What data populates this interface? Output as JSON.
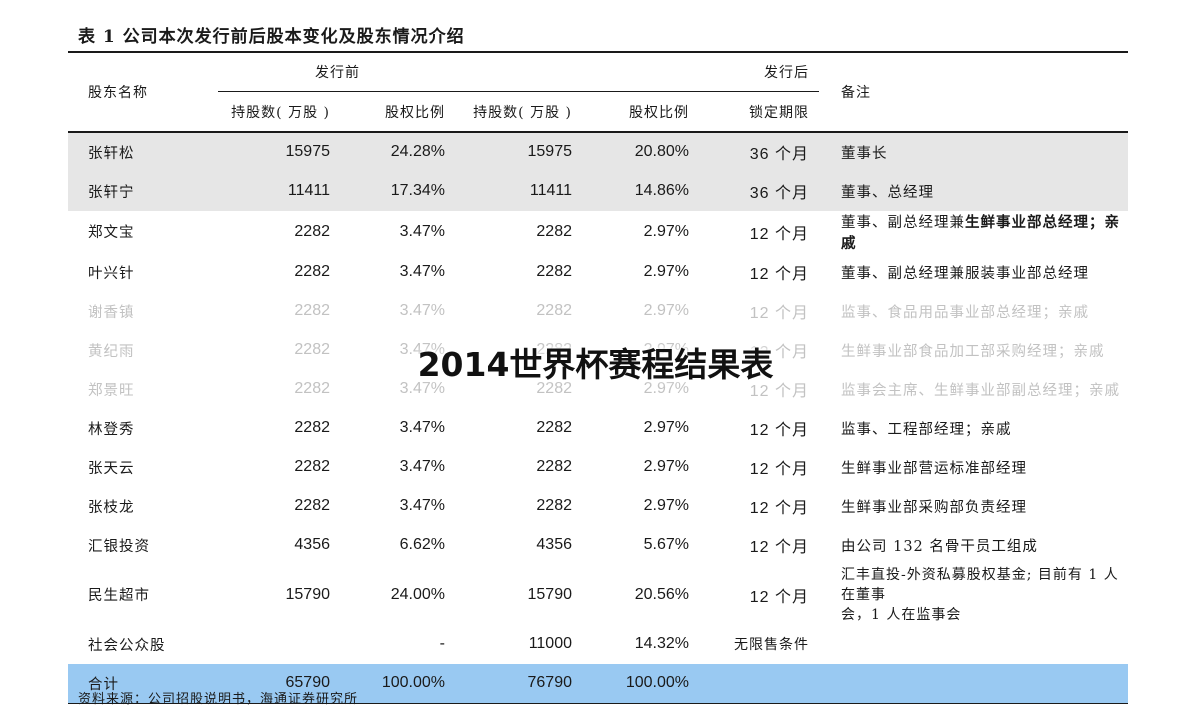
{
  "title": "表 1 公司本次发行前后股本变化及股东情况介绍",
  "overlay_title": "2014世界杯赛程结果表",
  "source": "资料来源：公司招股说明书，海通证券研究所",
  "headers": {
    "shareholder": "股东名称",
    "before": "发行前",
    "after": "发行后",
    "note": "备注",
    "shares_before": "持股数( 万股 )",
    "ratio_before": "股权比例",
    "shares_after": "持股数( 万股 )",
    "ratio_after": "股权比例",
    "lock": "锁定期限"
  },
  "rows": [
    {
      "name": "张轩松",
      "shares_before": "15975",
      "ratio_before": "24.28%",
      "shares_after": "15975",
      "ratio_after": "20.80%",
      "lock": "36 个月",
      "note": "董事长"
    },
    {
      "name": "张轩宁",
      "shares_before": "11411",
      "ratio_before": "17.34%",
      "shares_after": "11411",
      "ratio_after": "14.86%",
      "lock": "36 个月",
      "note": "董事、总经理"
    },
    {
      "name": "郑文宝",
      "shares_before": "2282",
      "ratio_before": "3.47%",
      "shares_after": "2282",
      "ratio_after": "2.97%",
      "lock": "12 个月",
      "note_plain": "董事、副总经理兼",
      "note_bold": "生鲜事业部总经理；亲戚"
    },
    {
      "name": "叶兴针",
      "shares_before": "2282",
      "ratio_before": "3.47%",
      "shares_after": "2282",
      "ratio_after": "2.97%",
      "lock": "12 个月",
      "note": "董事、副总经理兼服装事业部总经理"
    },
    {
      "name": "谢香镇",
      "shares_before": "2282",
      "ratio_before": "3.47%",
      "shares_after": "2282",
      "ratio_after": "2.97%",
      "lock": "12 个月",
      "note": "监事、食品用品事业部总经理；亲戚"
    },
    {
      "name": "黄纪雨",
      "shares_before": "2282",
      "ratio_before": "3.47%",
      "shares_after": "2282",
      "ratio_after": "2.97%",
      "lock": "12 个月",
      "note": "生鲜事业部食品加工部采购经理；亲戚"
    },
    {
      "name": "郑景旺",
      "shares_before": "2282",
      "ratio_before": "3.47%",
      "shares_after": "2282",
      "ratio_after": "2.97%",
      "lock": "12 个月",
      "note": "监事会主席、生鲜事业部副总经理；亲戚"
    },
    {
      "name": "林登秀",
      "shares_before": "2282",
      "ratio_before": "3.47%",
      "shares_after": "2282",
      "ratio_after": "2.97%",
      "lock": "12 个月",
      "note": "监事、工程部经理；亲戚"
    },
    {
      "name": "张天云",
      "shares_before": "2282",
      "ratio_before": "3.47%",
      "shares_after": "2282",
      "ratio_after": "2.97%",
      "lock": "12 个月",
      "note": "生鲜事业部营运标准部经理"
    },
    {
      "name": "张枝龙",
      "shares_before": "2282",
      "ratio_before": "3.47%",
      "shares_after": "2282",
      "ratio_after": "2.97%",
      "lock": "12 个月",
      "note": "生鲜事业部采购部负责经理"
    },
    {
      "name": "汇银投资",
      "shares_before": "4356",
      "ratio_before": "6.62%",
      "shares_after": "4356",
      "ratio_after": "5.67%",
      "lock": "12 个月",
      "note": "由公司 132 名骨干员工组成"
    },
    {
      "name": "民生超市",
      "shares_before": "15790",
      "ratio_before": "24.00%",
      "shares_after": "15790",
      "ratio_after": "20.56%",
      "lock": "12 个月",
      "note_line1": "汇丰直投-外资私募股权基金; 目前有 1 人在董事",
      "note_line2": "会，1 人在监事会"
    },
    {
      "name": "社会公众股",
      "shares_before": "",
      "ratio_before": "-",
      "shares_after": "11000",
      "ratio_after": "14.32%",
      "lock": "无限售条件",
      "note": ""
    },
    {
      "name": "合计",
      "shares_before": "65790",
      "ratio_before": "100.00%",
      "shares_after": "76790",
      "ratio_after": "100.00%",
      "lock": "",
      "note": ""
    }
  ]
}
